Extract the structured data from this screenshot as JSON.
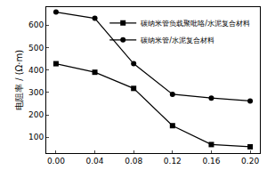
{
  "chart_data": {
    "type": "line",
    "y_label": "电阻率 / (Ω·m)",
    "x": [
      0,
      0.04,
      0.08,
      0.12,
      0.16,
      0.2
    ],
    "series": [
      {
        "name": "碳纳米管负载聚吡咯/水泥复合材料",
        "color": "#000000",
        "marker": "square",
        "line_style": "solid",
        "values": [
          428,
          390,
          318,
          152,
          68,
          58
        ]
      },
      {
        "name": "碳纳米管/水泥复合材料",
        "color": "#000000",
        "marker": "circle",
        "line_style": "solid",
        "values": [
          658,
          630,
          428,
          292,
          275,
          262
        ]
      }
    ],
    "xlim": [
      -0.01,
      0.21
    ],
    "xticks": [
      {
        "value": 0,
        "label": "0.00"
      },
      {
        "value": 0.04,
        "label": "0.04"
      },
      {
        "value": 0.08,
        "label": "0.08"
      },
      {
        "value": 0.12,
        "label": "0.12"
      },
      {
        "value": 0.16,
        "label": "0.16"
      },
      {
        "value": 0.2,
        "label": "0.20"
      }
    ],
    "ylim": [
      30,
      680
    ],
    "yticks": [
      100,
      200,
      300,
      400,
      500,
      600
    ],
    "grid": false,
    "legend": "top-right"
  }
}
